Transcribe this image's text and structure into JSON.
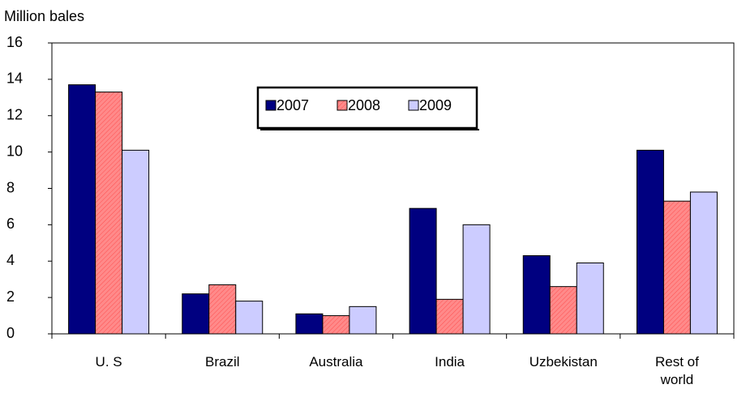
{
  "chart_data": {
    "type": "bar",
    "y_label": "Million bales",
    "categories": [
      "U. S",
      "Brazil",
      "Australia",
      "India",
      "Uzbekistan",
      "Rest of world"
    ],
    "series": [
      {
        "name": "2007",
        "color": "#000080",
        "values": [
          13.7,
          2.2,
          1.1,
          6.9,
          4.3,
          10.1
        ]
      },
      {
        "name": "2008",
        "color": "#ff8080",
        "values": [
          13.3,
          2.7,
          1.0,
          1.9,
          2.6,
          7.3
        ]
      },
      {
        "name": "2009",
        "color": "#ccccff",
        "values": [
          10.1,
          1.8,
          1.5,
          6.0,
          3.9,
          7.8
        ]
      }
    ],
    "ylim": [
      0,
      16
    ],
    "yticks": [
      0,
      2,
      4,
      6,
      8,
      10,
      12,
      14,
      16
    ],
    "grid": false
  }
}
